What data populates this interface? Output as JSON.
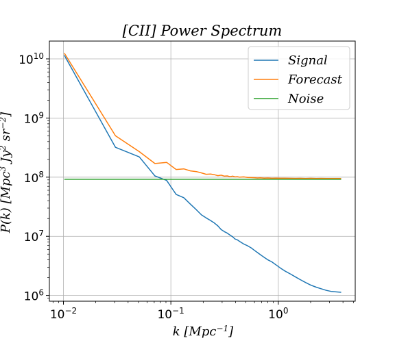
{
  "chart_data": {
    "type": "line",
    "title": "[CII] Power Spectrum",
    "xlabel": "k [Mpc^{-1}]",
    "ylabel": "P(k) [Mpc^3 Jy^2 sr^{-2}]",
    "xscale": "log",
    "yscale": "log",
    "xlim": [
      0.0074,
      5.2
    ],
    "ylim": [
      800000,
      20000000000
    ],
    "x_ticks": [
      {
        "value": 0.01,
        "base": "10",
        "exp": "−2"
      },
      {
        "value": 0.1,
        "base": "10",
        "exp": "−1"
      },
      {
        "value": 1,
        "base": "10",
        "exp": "0"
      }
    ],
    "y_ticks": [
      {
        "value": 1000000,
        "base": "10",
        "exp": "6"
      },
      {
        "value": 10000000,
        "base": "10",
        "exp": "7"
      },
      {
        "value": 100000000,
        "base": "10",
        "exp": "8"
      },
      {
        "value": 1000000000,
        "base": "10",
        "exp": "9"
      },
      {
        "value": 10000000000,
        "base": "10",
        "exp": "10"
      }
    ],
    "grid": true,
    "legend_position": "top-right",
    "series": [
      {
        "name": "Signal",
        "color": "#1f77b4",
        "x": [
          0.0102,
          0.0305,
          0.0508,
          0.071,
          0.0913,
          0.112,
          0.132,
          0.152,
          0.173,
          0.193,
          0.213,
          0.234,
          0.254,
          0.274,
          0.294,
          0.315,
          0.335,
          0.355,
          0.376,
          0.396,
          0.416,
          0.437,
          0.477,
          0.518,
          0.558,
          0.599,
          0.64,
          0.68,
          0.74,
          0.8,
          0.87,
          0.95,
          1.05,
          1.15,
          1.3,
          1.45,
          1.6,
          1.8,
          2.0,
          2.25,
          2.5,
          2.8,
          3.1,
          3.45,
          3.85
        ],
        "values": [
          11500000000,
          320000000,
          220000000,
          105000000,
          88000000,
          51000000,
          45000000,
          35000000,
          28000000,
          23000000,
          20500000,
          18500000,
          16800000,
          15000000,
          13000000,
          12000000,
          11300000,
          10500000,
          9800000,
          9000000,
          8700000,
          8200000,
          7400000,
          6900000,
          6400000,
          5800000,
          5300000,
          4900000,
          4400000,
          4000000,
          3700000,
          3300000,
          2900000,
          2600000,
          2300000,
          2050000,
          1850000,
          1650000,
          1500000,
          1380000,
          1300000,
          1220000,
          1170000,
          1150000,
          1130000
        ]
      },
      {
        "name": "Forecast",
        "color": "#ff7f0e",
        "x": [
          0.0102,
          0.0305,
          0.0508,
          0.071,
          0.0913,
          0.112,
          0.132,
          0.152,
          0.173,
          0.193,
          0.213,
          0.234,
          0.254,
          0.274,
          0.294,
          0.315,
          0.335,
          0.355,
          0.376,
          0.396,
          0.416,
          0.437,
          0.477,
          0.518,
          0.558,
          0.599,
          0.64,
          0.68,
          0.74,
          0.8,
          0.87,
          0.95,
          1.05,
          1.15,
          1.3,
          1.45,
          1.6,
          1.8,
          2.0,
          2.25,
          2.5,
          2.8,
          3.1,
          3.45,
          3.85
        ],
        "values": [
          12500000000,
          500000000,
          270000000,
          170000000,
          178000000,
          135000000,
          138000000,
          128000000,
          124000000,
          118000000,
          112000000,
          113000000,
          110000000,
          106000000,
          108000000,
          104000000,
          105000000,
          102000000,
          104000000,
          101000000,
          102000000,
          100000000,
          101000000,
          99000000,
          98500000,
          98000000,
          97000000,
          97500000,
          96500000,
          97000000,
          96000000,
          96200000,
          95800000,
          96000000,
          95600000,
          95400000,
          95700000,
          95200000,
          95500000,
          95100000,
          95300000,
          95000000,
          95200000,
          95100000,
          95000000
        ]
      },
      {
        "name": "Noise",
        "color": "#2ca02c",
        "x": [
          0.0102,
          3.85
        ],
        "values": [
          92000000,
          92000000
        ]
      }
    ]
  }
}
